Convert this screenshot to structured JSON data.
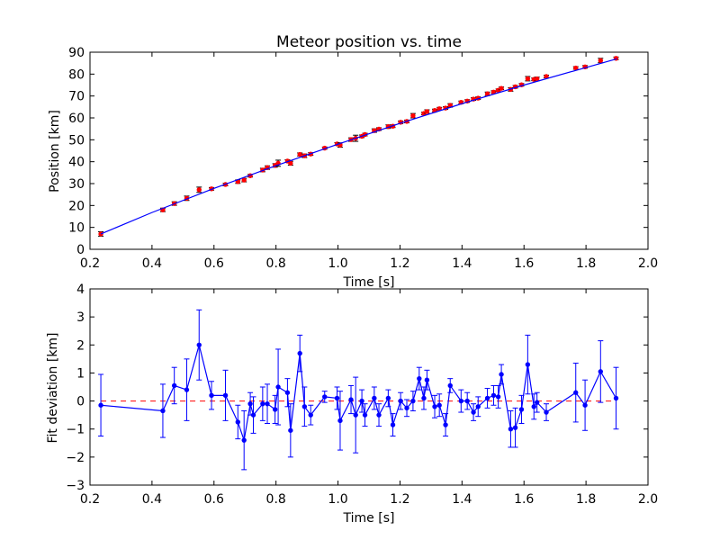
{
  "chart_data": [
    {
      "type": "scatter",
      "title": "Meteor position vs. time",
      "xlabel": "Time [s]",
      "ylabel": "Position [km]",
      "xlim": [
        0.2,
        2.0
      ],
      "ylim": [
        0,
        90
      ],
      "xticks": [
        "0.2",
        "0.4",
        "0.6",
        "0.8",
        "1.0",
        "1.2",
        "1.4",
        "1.6",
        "1.8",
        "2.0"
      ],
      "yticks": [
        "0",
        "10",
        "20",
        "30",
        "40",
        "50",
        "60",
        "70",
        "80",
        "90"
      ],
      "grid": false,
      "series": [
        {
          "kind": "errorbar-points",
          "color": "#ff0000",
          "x": [
            0.235,
            0.435,
            0.472,
            0.512,
            0.552,
            0.592,
            0.637,
            0.677,
            0.697,
            0.717,
            0.757,
            0.772,
            0.797,
            0.807,
            0.837,
            0.847,
            0.877,
            0.892,
            0.912,
            0.957,
            0.997,
            1.007,
            1.042,
            1.057,
            1.077,
            1.087,
            1.117,
            1.132,
            1.162,
            1.177,
            1.202,
            1.222,
            1.242,
            1.277,
            1.287,
            1.312,
            1.327,
            1.347,
            1.362,
            1.397,
            1.417,
            1.437,
            1.452,
            1.482,
            1.502,
            1.517,
            1.527,
            1.557,
            1.572,
            1.592,
            1.612,
            1.632,
            1.642,
            1.672,
            1.767,
            1.797,
            1.847,
            1.897
          ],
          "y": [
            7.0,
            18.0,
            20.9,
            23.3,
            27.2,
            27.6,
            29.6,
            30.9,
            31.6,
            33.6,
            36.2,
            37.3,
            38.3,
            39.3,
            40.3,
            39.3,
            43.3,
            42.7,
            43.5,
            46.2,
            48.1,
            47.6,
            50.1,
            50.7,
            51.6,
            52.4,
            54.2,
            54.9,
            56.0,
            56.2,
            58.0,
            58.4,
            61.0,
            62.0,
            62.9,
            63.4,
            64.2,
            64.5,
            65.7,
            67.1,
            67.7,
            68.6,
            69.0,
            71.0,
            71.8,
            72.6,
            73.5,
            73.0,
            74.2,
            75.1,
            77.9,
            77.6,
            77.8,
            78.9,
            82.8,
            83.3,
            86.2,
            87.2
          ],
          "yerr": [
            1.0,
            0.8,
            0.8,
            1.0,
            1.2,
            0.6,
            0.6,
            0.8,
            0.8,
            0.6,
            0.8,
            0.8,
            0.8,
            1.4,
            0.6,
            0.9,
            0.7,
            0.8,
            0.6,
            0.5,
            0.6,
            1.0,
            0.8,
            1.4,
            0.6,
            0.6,
            0.8,
            0.6,
            0.8,
            0.6,
            0.6,
            0.6,
            1.0,
            0.6,
            0.8,
            0.6,
            0.6,
            0.6,
            0.8,
            0.6,
            0.6,
            0.6,
            0.6,
            0.8,
            0.6,
            0.6,
            0.6,
            0.8,
            0.6,
            0.6,
            1.0,
            0.6,
            0.8,
            0.6,
            0.6,
            0.6,
            1.0,
            0.6
          ]
        },
        {
          "kind": "fit-line",
          "color": "#0000ff",
          "x": [
            0.235,
            0.4,
            0.6,
            0.8,
            1.0,
            1.2,
            1.4,
            1.6,
            1.8,
            1.9
          ],
          "y": [
            7.0,
            16.8,
            27.8,
            38.2,
            48.0,
            57.5,
            66.5,
            75.0,
            83.0,
            87.0
          ]
        }
      ]
    },
    {
      "type": "line",
      "title": "",
      "xlabel": "Time [s]",
      "ylabel": "Fit deviation [km]",
      "xlim": [
        0.2,
        2.0
      ],
      "ylim": [
        -3,
        4
      ],
      "xticks": [
        "0.2",
        "0.4",
        "0.6",
        "0.8",
        "1.0",
        "1.2",
        "1.4",
        "1.6",
        "1.8",
        "2.0"
      ],
      "yticks": [
        "−3",
        "−2",
        "−1",
        "0",
        "1",
        "2",
        "3",
        "4"
      ],
      "grid": false,
      "reference_line": {
        "y": 0,
        "color": "#ff0000",
        "style": "dashed"
      },
      "series": [
        {
          "kind": "errorbar-line",
          "color": "#0000ff",
          "x": [
            0.235,
            0.435,
            0.472,
            0.512,
            0.552,
            0.592,
            0.637,
            0.677,
            0.697,
            0.717,
            0.727,
            0.757,
            0.772,
            0.797,
            0.807,
            0.837,
            0.847,
            0.877,
            0.892,
            0.912,
            0.957,
            0.997,
            1.007,
            1.042,
            1.057,
            1.077,
            1.087,
            1.117,
            1.132,
            1.162,
            1.177,
            1.202,
            1.222,
            1.242,
            1.262,
            1.277,
            1.287,
            1.312,
            1.327,
            1.347,
            1.362,
            1.397,
            1.417,
            1.437,
            1.452,
            1.482,
            1.502,
            1.517,
            1.527,
            1.557,
            1.572,
            1.592,
            1.612,
            1.632,
            1.642,
            1.672,
            1.767,
            1.797,
            1.847,
            1.897
          ],
          "y": [
            -0.15,
            -0.35,
            0.55,
            0.4,
            2.0,
            0.2,
            0.2,
            -0.75,
            -1.4,
            -0.1,
            -0.5,
            -0.1,
            -0.1,
            -0.3,
            0.5,
            0.3,
            -1.05,
            1.7,
            -0.2,
            -0.5,
            0.15,
            0.1,
            -0.7,
            0.05,
            -0.5,
            0.0,
            -0.5,
            0.1,
            -0.5,
            0.1,
            -0.85,
            0.0,
            -0.25,
            0.0,
            0.8,
            0.1,
            0.75,
            -0.2,
            -0.15,
            -0.85,
            0.55,
            0.0,
            0.0,
            -0.4,
            -0.2,
            0.1,
            0.2,
            0.15,
            0.95,
            -1.0,
            -0.95,
            -0.3,
            1.3,
            -0.2,
            -0.05,
            -0.4,
            0.3,
            -0.15,
            1.05,
            0.1
          ],
          "yerr": [
            1.1,
            0.95,
            0.65,
            1.1,
            1.25,
            0.5,
            0.9,
            0.6,
            1.05,
            0.4,
            0.65,
            0.6,
            0.7,
            0.5,
            1.35,
            0.5,
            0.95,
            0.65,
            0.7,
            0.35,
            0.2,
            0.4,
            1.05,
            0.5,
            1.35,
            0.4,
            0.4,
            0.4,
            0.4,
            0.3,
            0.4,
            0.3,
            0.3,
            0.35,
            0.4,
            0.4,
            0.35,
            0.4,
            0.4,
            0.4,
            0.25,
            0.4,
            0.3,
            0.3,
            0.35,
            0.35,
            0.35,
            0.4,
            0.35,
            0.65,
            0.7,
            0.5,
            1.05,
            0.45,
            0.35,
            0.3,
            1.05,
            0.9,
            1.1,
            1.1
          ]
        }
      ]
    }
  ]
}
